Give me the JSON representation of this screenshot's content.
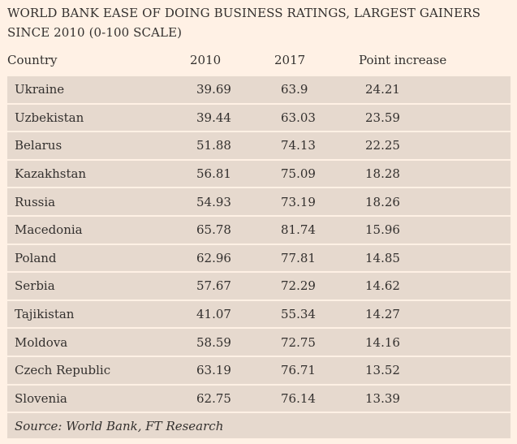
{
  "title": "WORLD BANK EASE OF DOING BUSINESS RATINGS, LARGEST GAINERS SINCE 2010 (0-100 SCALE)",
  "columns": [
    "Country",
    "2010",
    "2017",
    "Point increase"
  ],
  "rows": [
    {
      "country": "Ukraine",
      "y2010": "39.69",
      "y2017": "63.9",
      "increase": "24.21"
    },
    {
      "country": "Uzbekistan",
      "y2010": "39.44",
      "y2017": "63.03",
      "increase": "23.59"
    },
    {
      "country": "Belarus",
      "y2010": "51.88",
      "y2017": "74.13",
      "increase": "22.25"
    },
    {
      "country": "Kazakhstan",
      "y2010": "56.81",
      "y2017": "75.09",
      "increase": "18.28"
    },
    {
      "country": "Russia",
      "y2010": "54.93",
      "y2017": "73.19",
      "increase": "18.26"
    },
    {
      "country": "Macedonia",
      "y2010": "65.78",
      "y2017": "81.74",
      "increase": "15.96"
    },
    {
      "country": "Poland",
      "y2010": "62.96",
      "y2017": "77.81",
      "increase": "14.85"
    },
    {
      "country": "Serbia",
      "y2010": "57.67",
      "y2017": "72.29",
      "increase": "14.62"
    },
    {
      "country": "Tajikistan",
      "y2010": "41.07",
      "y2017": "55.34",
      "increase": "14.27"
    },
    {
      "country": "Moldova",
      "y2010": "58.59",
      "y2017": "72.75",
      "increase": "14.16"
    },
    {
      "country": "Czech Republic",
      "y2010": "63.19",
      "y2017": "76.71",
      "increase": "13.52"
    },
    {
      "country": "Slovenia",
      "y2010": "62.75",
      "y2017": "76.14",
      "increase": "13.39"
    }
  ],
  "source": "Source: World Bank, FT Research",
  "colors": {
    "background": "#fff1e5",
    "row_shade": "#e6d9ce",
    "text": "#33302e"
  }
}
